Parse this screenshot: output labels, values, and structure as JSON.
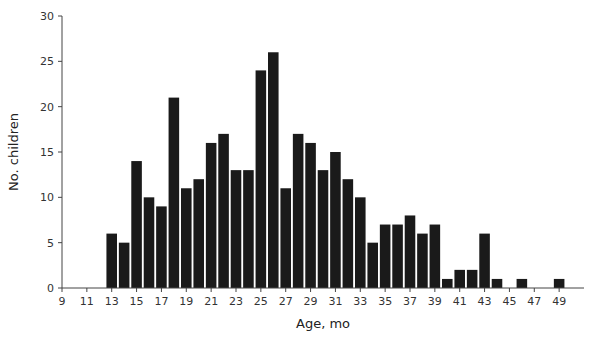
{
  "chart_data": {
    "type": "bar",
    "x": [
      13,
      14,
      15,
      16,
      17,
      18,
      19,
      20,
      21,
      22,
      23,
      24,
      25,
      26,
      27,
      28,
      29,
      30,
      31,
      32,
      33,
      34,
      35,
      36,
      37,
      38,
      39,
      40,
      41,
      42,
      43,
      44,
      45,
      46,
      47,
      48,
      49
    ],
    "values": [
      6,
      5,
      14,
      10,
      9,
      21,
      11,
      12,
      16,
      17,
      13,
      13,
      24,
      26,
      11,
      17,
      16,
      13,
      15,
      12,
      10,
      5,
      7,
      7,
      8,
      6,
      7,
      1,
      2,
      2,
      6,
      1,
      0,
      1,
      0,
      0,
      1
    ],
    "xlabel": "Age, mo",
    "ylabel": "No. children",
    "xlim": [
      9,
      51
    ],
    "ylim": [
      0,
      30
    ],
    "xticks": [
      9,
      11,
      13,
      15,
      17,
      19,
      21,
      23,
      25,
      27,
      29,
      31,
      33,
      35,
      37,
      39,
      41,
      43,
      45,
      47,
      49
    ],
    "yticks": [
      0,
      5,
      10,
      15,
      20,
      25,
      30
    ],
    "color": "#1a1a1a",
    "grid": false
  }
}
